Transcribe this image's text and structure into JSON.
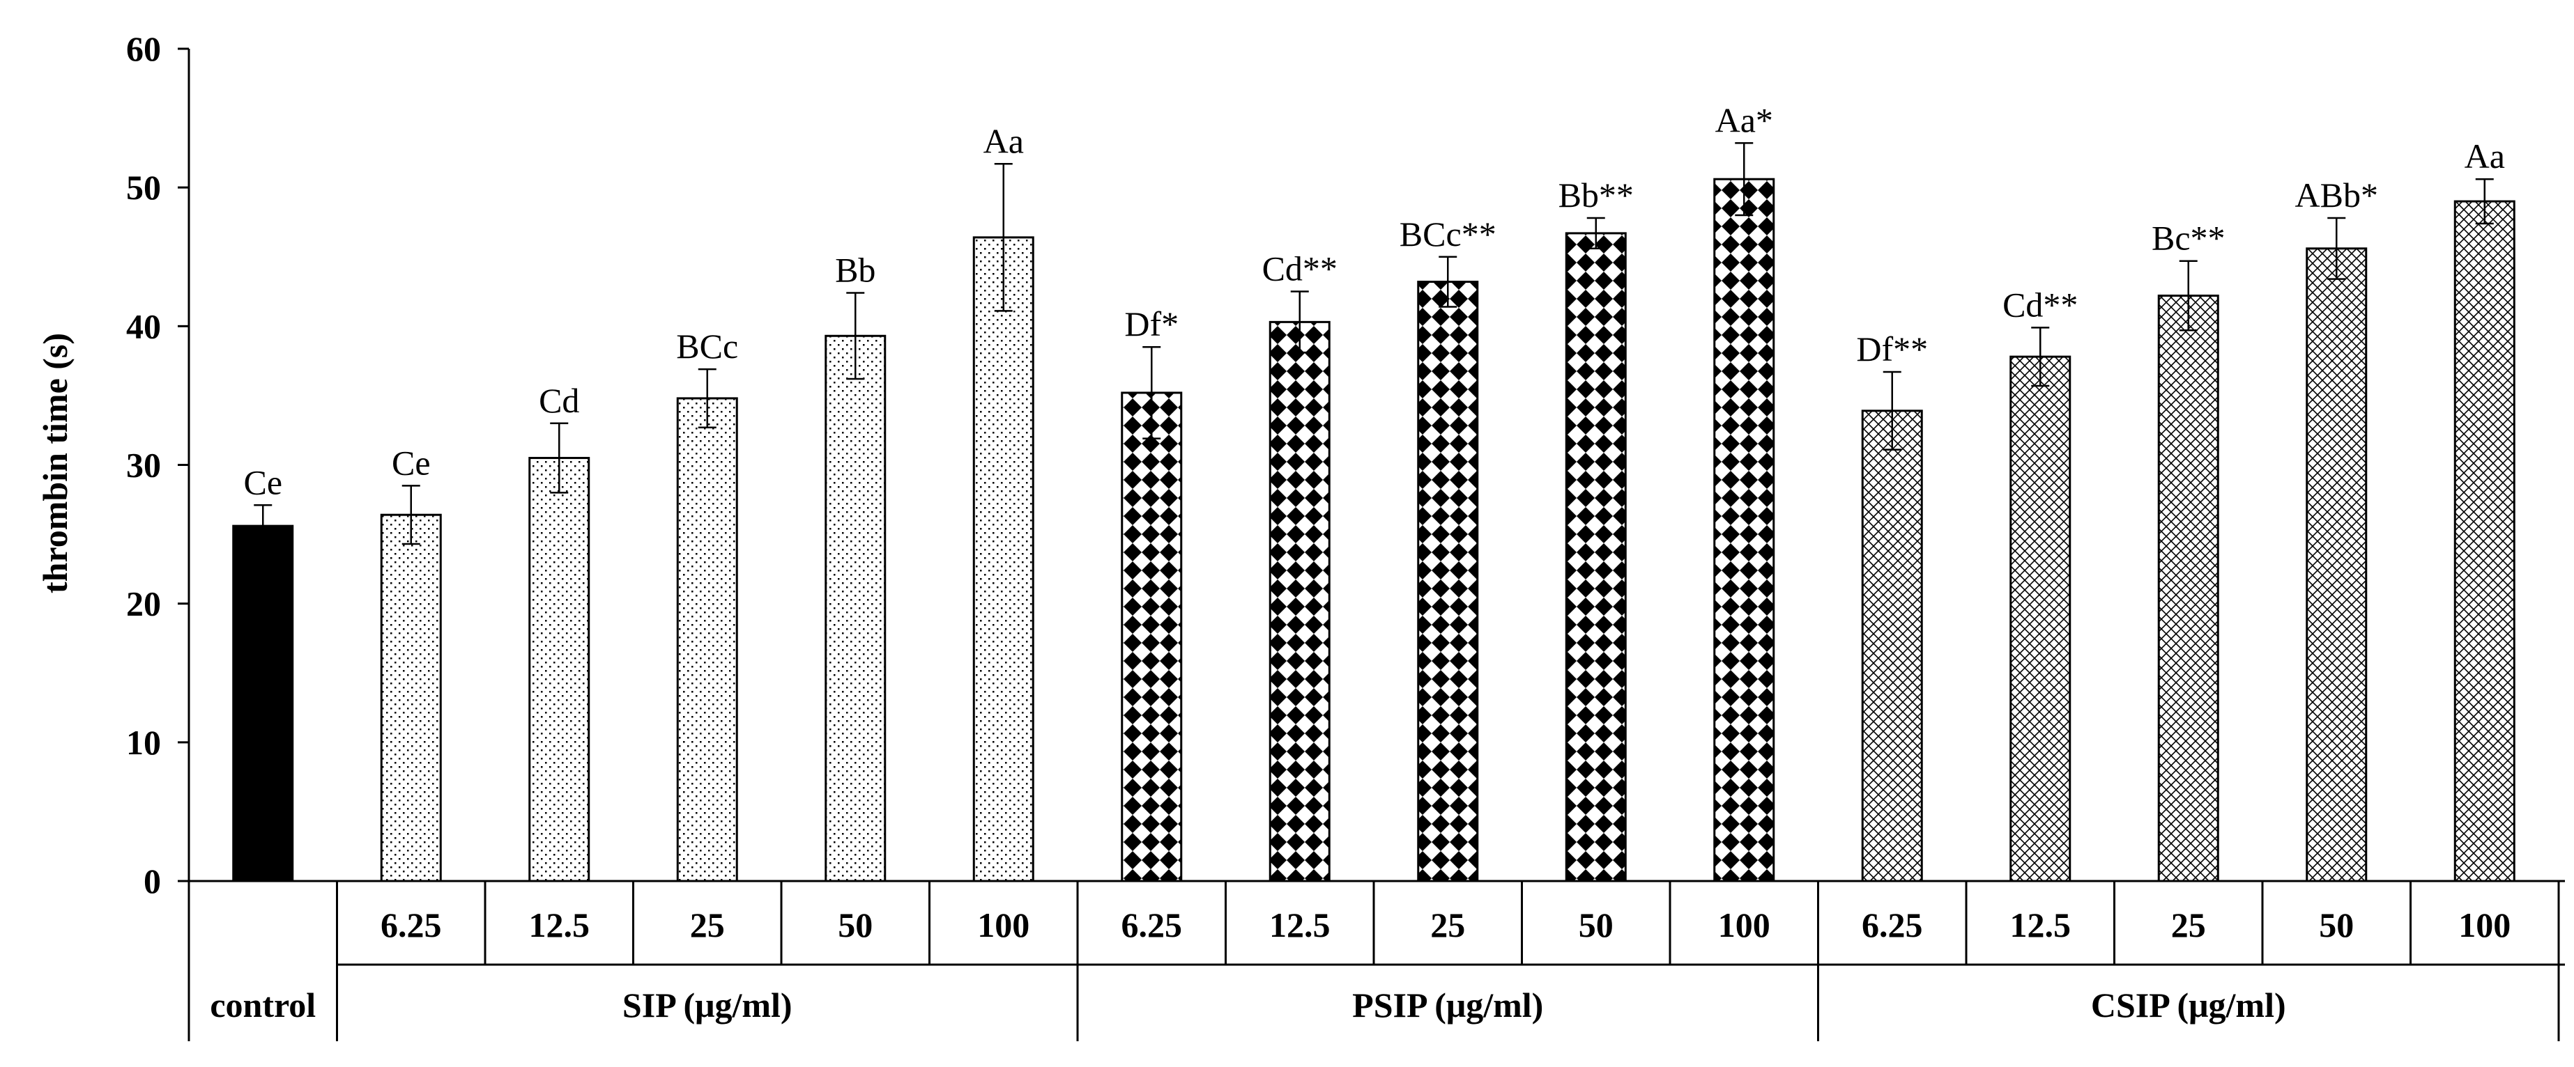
{
  "chart_data": {
    "type": "bar",
    "ylabel": "thrombin time (s)",
    "ylim": [
      0,
      60
    ],
    "yticks": [
      "0",
      "10",
      "20",
      "30",
      "40",
      "50",
      "60"
    ],
    "grid": false,
    "groups": [
      {
        "name": "control",
        "pattern": "solid",
        "bars": [
          {
            "category": "",
            "value": 25.6,
            "error": 1.5,
            "label": "Ce"
          }
        ]
      },
      {
        "name": "SIP (μg/ml)",
        "pattern": "dots",
        "bars": [
          {
            "category": "6.25",
            "value": 26.4,
            "error": 2.1,
            "label": "Ce"
          },
          {
            "category": "12.5",
            "value": 30.5,
            "error": 2.5,
            "label": "Cd"
          },
          {
            "category": "25",
            "value": 34.8,
            "error": 2.1,
            "label": "BCc"
          },
          {
            "category": "50",
            "value": 39.3,
            "error": 3.1,
            "label": "Bb"
          },
          {
            "category": "100",
            "value": 46.4,
            "error": 5.3,
            "label": "Aa"
          }
        ]
      },
      {
        "name": "PSIP (μg/ml)",
        "pattern": "checker",
        "bars": [
          {
            "category": "6.25",
            "value": 35.2,
            "error": 3.3,
            "label": "Df*"
          },
          {
            "category": "12.5",
            "value": 40.3,
            "error": 2.2,
            "label": "Cd**"
          },
          {
            "category": "25",
            "value": 43.2,
            "error": 1.8,
            "label": "BCc**"
          },
          {
            "category": "50",
            "value": 46.7,
            "error": 1.1,
            "label": "Bb**"
          },
          {
            "category": "100",
            "value": 50.6,
            "error": 2.6,
            "label": "Aa*"
          }
        ]
      },
      {
        "name": "CSIP (μg/ml)",
        "pattern": "hatch",
        "bars": [
          {
            "category": "6.25",
            "value": 33.9,
            "error": 2.8,
            "label": "Df**"
          },
          {
            "category": "12.5",
            "value": 37.8,
            "error": 2.1,
            "label": "Cd**"
          },
          {
            "category": "25",
            "value": 42.2,
            "error": 2.5,
            "label": "Bc**"
          },
          {
            "category": "50",
            "value": 45.6,
            "error": 2.2,
            "label": "ABb*"
          },
          {
            "category": "100",
            "value": 49.0,
            "error": 1.6,
            "label": "Aa"
          }
        ]
      }
    ]
  }
}
